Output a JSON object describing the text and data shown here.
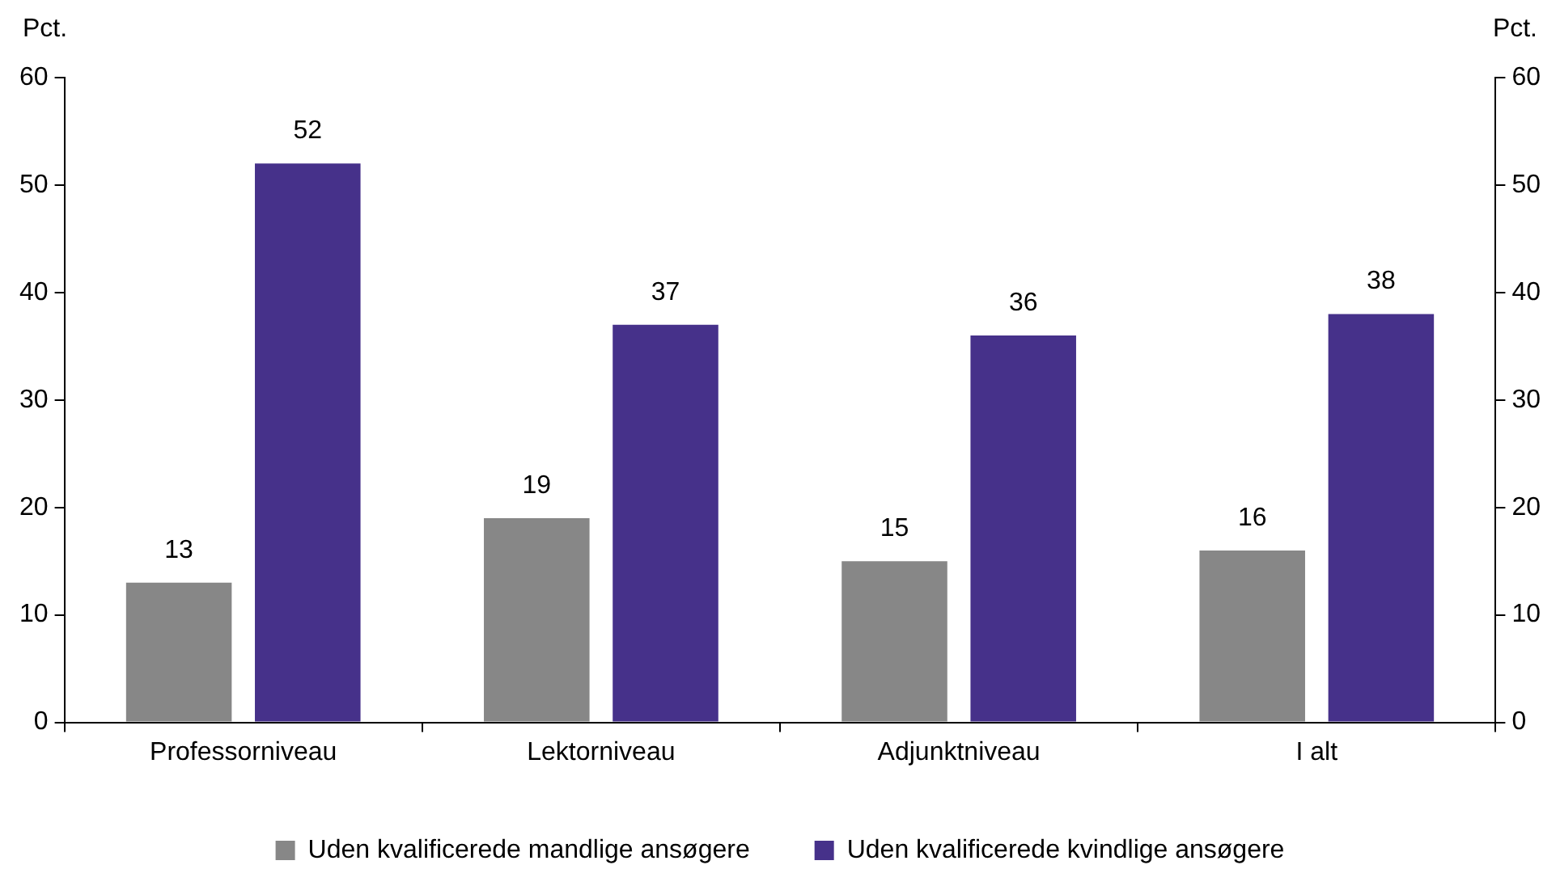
{
  "chart_data": {
    "type": "bar",
    "ylabel": "Pct.",
    "y2label": "Pct.",
    "categories": [
      "Professorniveau",
      "Lektorniveau",
      "Adjunktniveau",
      "I alt"
    ],
    "series": [
      {
        "name": "Uden kvalificerede mandlige ansøgere",
        "color": "#878787",
        "values": [
          13,
          19,
          15,
          16
        ]
      },
      {
        "name": "Uden kvalificerede kvindlige ansøgere",
        "color": "#46318a",
        "values": [
          52,
          37,
          36,
          38
        ]
      }
    ],
    "ylim": [
      0,
      60
    ],
    "yticks": [
      0,
      10,
      20,
      30,
      40,
      50,
      60
    ],
    "y2lim": [
      0,
      60
    ],
    "y2ticks": [
      0,
      10,
      20,
      30,
      40,
      50,
      60
    ],
    "data_labels": true,
    "grid": false,
    "legend": "bottom"
  }
}
